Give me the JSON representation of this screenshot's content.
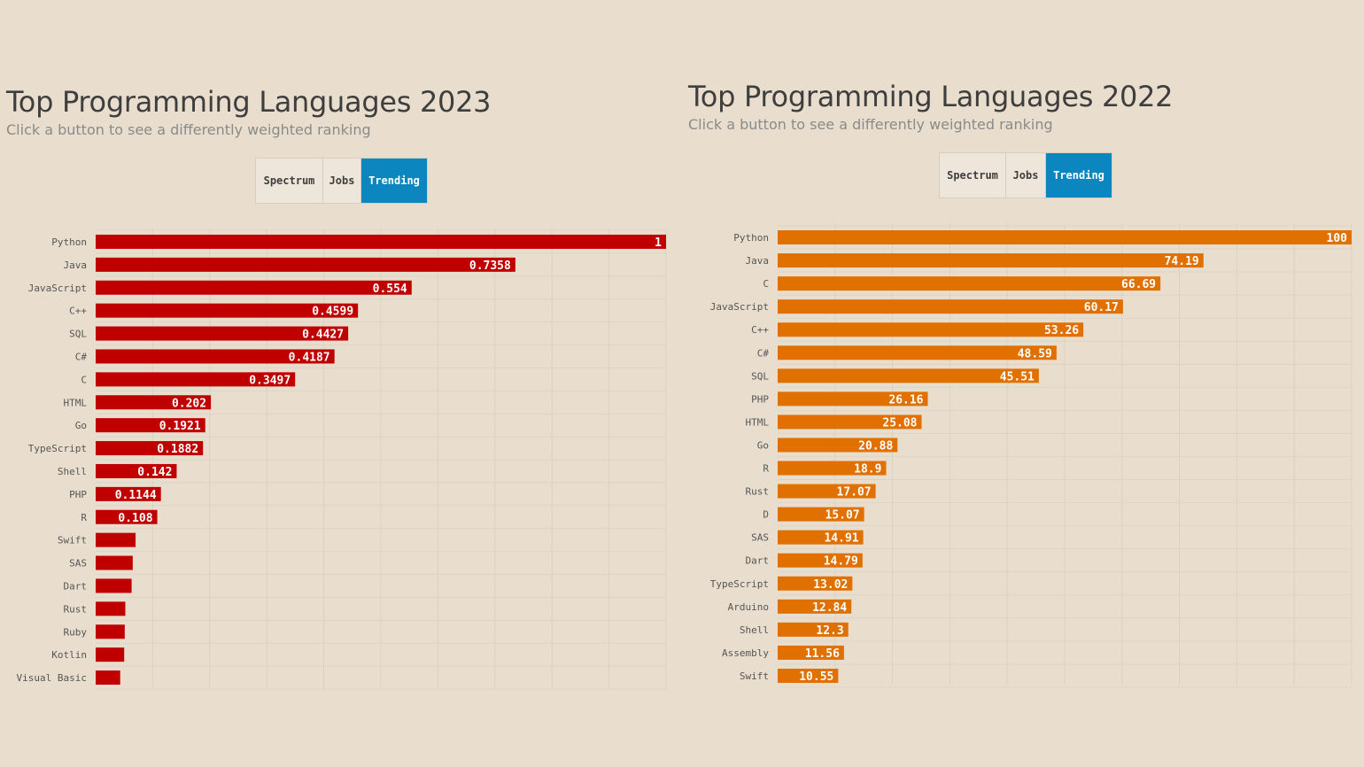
{
  "panels": [
    {
      "title": "Top Programming Languages 2023",
      "subtitle": "Click a button to see a differently weighted ranking",
      "buttons": [
        {
          "label": "Spectrum",
          "active": false
        },
        {
          "label": "Jobs",
          "active": false
        },
        {
          "label": "Trending",
          "active": true
        }
      ]
    },
    {
      "title": "Top Programming Languages 2022",
      "subtitle": "Click a button to see a differently weighted ranking",
      "buttons": [
        {
          "label": "Spectrum",
          "active": false
        },
        {
          "label": "Jobs",
          "active": false
        },
        {
          "label": "Trending",
          "active": true
        }
      ]
    }
  ],
  "chart_data": [
    {
      "type": "bar",
      "orientation": "horizontal",
      "color": "#c00000",
      "title": "Top Programming Languages 2023",
      "xlim": [
        0,
        1
      ],
      "grid": true,
      "categories": [
        "Python",
        "Java",
        "JavaScript",
        "C++",
        "SQL",
        "C#",
        "C",
        "HTML",
        "Go",
        "TypeScript",
        "Shell",
        "PHP",
        "R",
        "Swift",
        "SAS",
        "Dart",
        "Rust",
        "Ruby",
        "Kotlin",
        "Visual Basic"
      ],
      "values": [
        1,
        0.7358,
        0.554,
        0.4599,
        0.4427,
        0.4187,
        0.3497,
        0.202,
        0.1921,
        0.1882,
        0.142,
        0.1144,
        0.108,
        0.07,
        0.065,
        0.063,
        0.052,
        0.051,
        0.05,
        0.043
      ],
      "value_labels": [
        "1",
        "0.7358",
        "0.554",
        "0.4599",
        "0.4427",
        "0.4187",
        "0.3497",
        "0.202",
        "0.1921",
        "0.1882",
        "0.142",
        "0.1144",
        "0.108",
        "",
        "",
        "",
        "",
        "",
        "",
        ""
      ]
    },
    {
      "type": "bar",
      "orientation": "horizontal",
      "color": "#e07000",
      "title": "Top Programming Languages 2022",
      "xlim": [
        0,
        100
      ],
      "grid": true,
      "categories": [
        "Python",
        "Java",
        "C",
        "JavaScript",
        "C++",
        "C#",
        "SQL",
        "PHP",
        "HTML",
        "Go",
        "R",
        "Rust",
        "D",
        "SAS",
        "Dart",
        "TypeScript",
        "Arduino",
        "Shell",
        "Assembly",
        "Swift"
      ],
      "values": [
        100,
        74.19,
        66.69,
        60.17,
        53.26,
        48.59,
        45.51,
        26.16,
        25.08,
        20.88,
        18.9,
        17.07,
        15.07,
        14.91,
        14.79,
        13.02,
        12.84,
        12.3,
        11.56,
        10.55
      ],
      "value_labels": [
        "100",
        "74.19",
        "66.69",
        "60.17",
        "53.26",
        "48.59",
        "45.51",
        "26.16",
        "25.08",
        "20.88",
        "18.9",
        "17.07",
        "15.07",
        "14.91",
        "14.79",
        "13.02",
        "12.84",
        "12.3",
        "11.56",
        "10.55"
      ]
    }
  ]
}
